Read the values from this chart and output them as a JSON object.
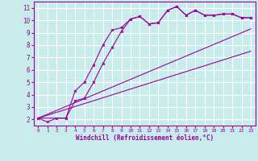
{
  "xlabel": "Windchill (Refroidissement éolien,°C)",
  "bg_color": "#c8ecec",
  "grid_color": "#ffffff",
  "line_color": "#990099",
  "xlim": [
    -0.5,
    23.5
  ],
  "ylim": [
    1.5,
    11.5
  ],
  "x_ticks": [
    0,
    1,
    2,
    3,
    4,
    5,
    6,
    7,
    8,
    9,
    10,
    11,
    12,
    13,
    14,
    15,
    16,
    17,
    18,
    19,
    20,
    21,
    22,
    23
  ],
  "y_ticks": [
    2,
    3,
    4,
    5,
    6,
    7,
    8,
    9,
    10,
    11
  ],
  "line1_x": [
    0,
    1,
    2,
    3,
    4,
    5,
    6,
    7,
    8,
    9,
    10,
    11,
    12,
    13,
    14,
    15,
    16,
    17,
    18,
    19,
    20,
    21,
    22,
    23
  ],
  "line1_y": [
    2.1,
    1.8,
    2.1,
    2.1,
    4.3,
    5.0,
    6.4,
    8.0,
    9.2,
    9.4,
    10.1,
    10.3,
    9.7,
    9.8,
    10.8,
    11.1,
    10.4,
    10.8,
    10.4,
    10.4,
    10.5,
    10.5,
    10.2,
    10.2
  ],
  "line2_x": [
    0,
    3,
    4,
    5,
    6,
    7,
    8,
    9,
    10,
    11,
    12,
    13,
    14,
    15,
    16,
    17,
    18,
    19,
    20,
    21,
    22,
    23
  ],
  "line2_y": [
    2.1,
    2.1,
    3.5,
    3.7,
    5.0,
    6.5,
    7.8,
    9.1,
    10.1,
    10.3,
    9.7,
    9.8,
    10.8,
    11.1,
    10.4,
    10.8,
    10.4,
    10.4,
    10.5,
    10.5,
    10.2,
    10.2
  ],
  "line3_x": [
    0,
    23
  ],
  "line3_y": [
    2.1,
    9.3
  ],
  "line4_x": [
    0,
    23
  ],
  "line4_y": [
    2.1,
    7.5
  ]
}
